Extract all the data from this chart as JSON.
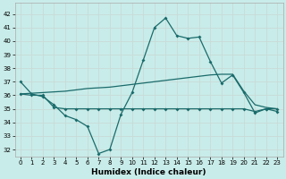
{
  "xlabel": "Humidex (Indice chaleur)",
  "background_color": "#c8ece9",
  "grid_color": "#d4e8e5",
  "line_color": "#1a6b6b",
  "x_ticks": [
    0,
    1,
    2,
    3,
    4,
    5,
    6,
    7,
    8,
    9,
    10,
    11,
    12,
    13,
    14,
    15,
    16,
    17,
    18,
    19,
    20,
    21,
    22,
    23
  ],
  "y_ticks": [
    32,
    33,
    34,
    35,
    36,
    37,
    38,
    39,
    40,
    41,
    42
  ],
  "ylim": [
    31.5,
    42.8
  ],
  "xlim": [
    -0.5,
    23.5
  ],
  "series1": [
    37.0,
    36.1,
    35.9,
    35.3,
    34.5,
    34.2,
    33.7,
    31.7,
    32.0,
    34.6,
    36.2,
    38.6,
    41.0,
    41.7,
    40.4,
    40.2,
    40.3,
    38.5,
    36.9,
    37.5,
    36.2,
    34.7,
    35.0,
    34.8
  ],
  "series2": [
    36.1,
    36.0,
    36.0,
    35.1,
    35.0,
    35.0,
    35.0,
    35.0,
    35.0,
    35.0,
    35.0,
    35.0,
    35.0,
    35.0,
    35.0,
    35.0,
    35.0,
    35.0,
    35.0,
    35.0,
    35.0,
    34.8,
    35.0,
    35.0
  ],
  "series3": [
    36.1,
    36.15,
    36.2,
    36.25,
    36.3,
    36.4,
    36.5,
    36.55,
    36.6,
    36.7,
    36.8,
    36.9,
    37.0,
    37.1,
    37.2,
    37.3,
    37.4,
    37.5,
    37.55,
    37.55,
    36.3,
    35.3,
    35.1,
    35.0
  ]
}
